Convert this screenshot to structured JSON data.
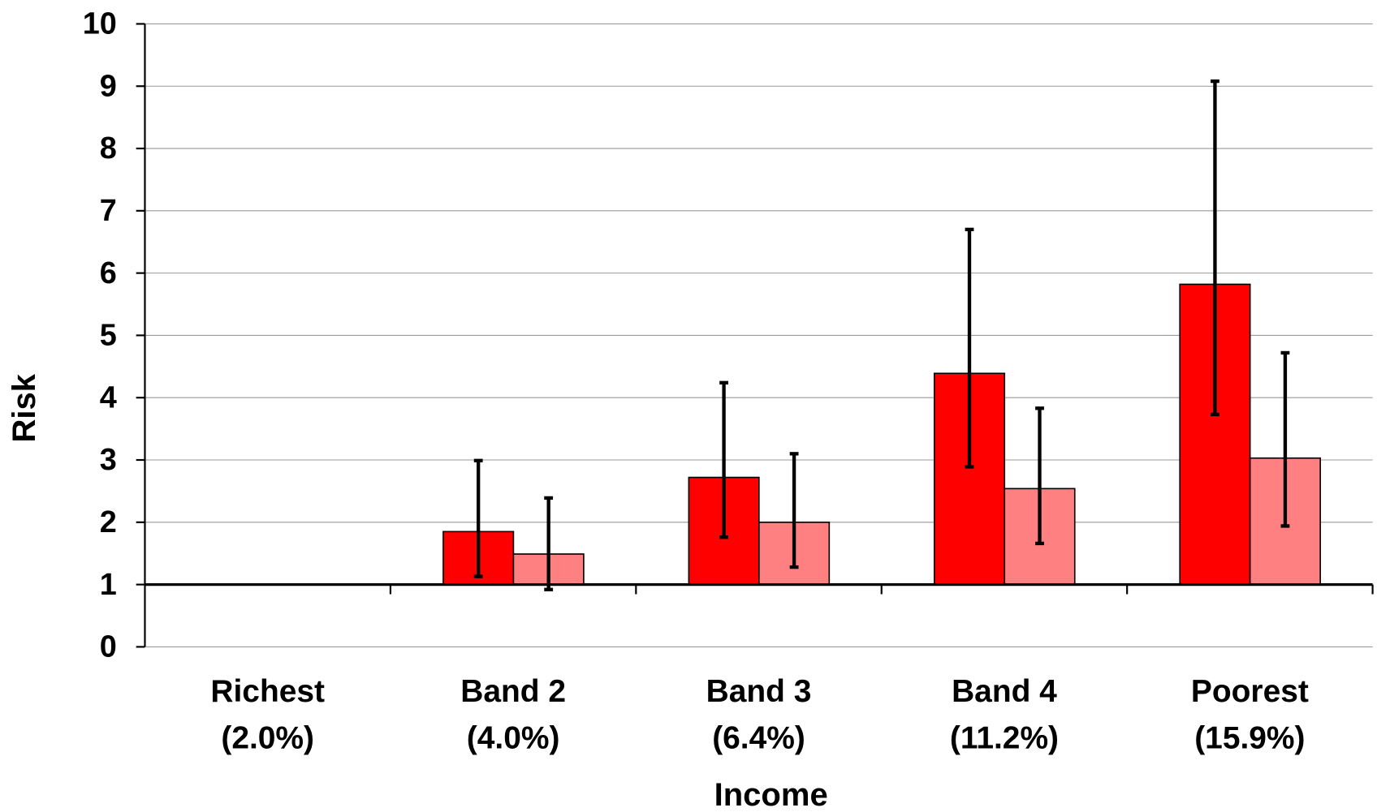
{
  "chart_data": {
    "type": "bar",
    "x_label": "Income",
    "y_label": "Risk",
    "categories": [
      "Richest",
      "Band 2",
      "Band 3",
      "Band 4",
      "Poorest"
    ],
    "category_notes": [
      "(2.0%)",
      "(4.0%)",
      "(6.4%)",
      "(11.2%)",
      "(15.9%)"
    ],
    "series": [
      {
        "color": "#ff0000",
        "values": [
          1,
          1.85,
          2.72,
          4.39,
          5.82
        ],
        "ci_low": [
          null,
          1.13,
          1.76,
          2.89,
          3.73
        ],
        "ci_high": [
          null,
          2.99,
          4.24,
          6.7,
          9.08
        ]
      },
      {
        "color": "#ff8080",
        "values": [
          1,
          1.49,
          2.0,
          2.54,
          3.03
        ],
        "ci_low": [
          null,
          0.92,
          1.28,
          1.66,
          1.94
        ],
        "ci_high": [
          null,
          2.39,
          3.1,
          3.83,
          4.72
        ]
      }
    ],
    "baseline": 1,
    "ylim": [
      0,
      10
    ],
    "yticks": [
      0,
      1,
      2,
      3,
      4,
      5,
      6,
      7,
      8,
      9,
      10
    ],
    "grid": true
  }
}
